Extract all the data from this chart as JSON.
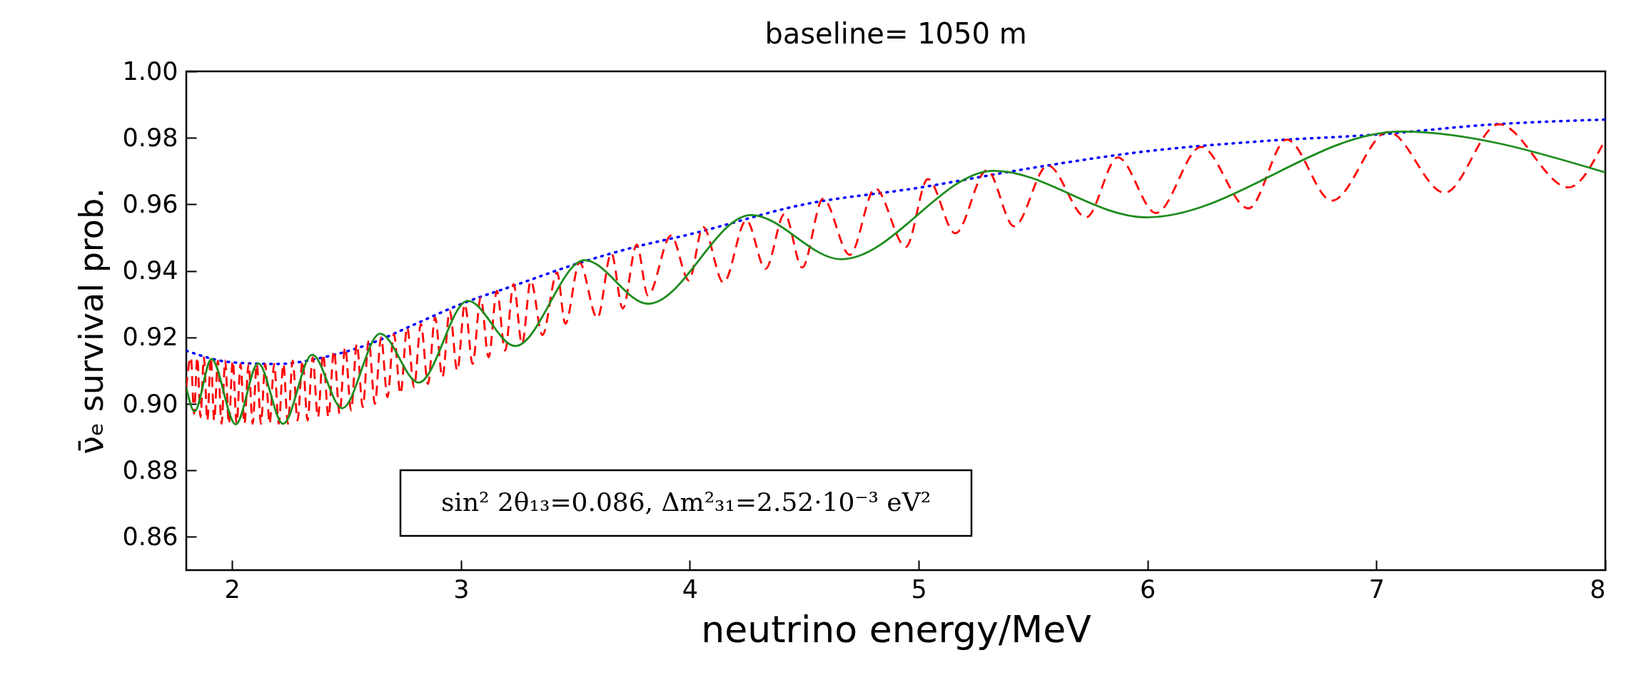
{
  "chart_data": {
    "type": "line",
    "title": "baseline= 1050 m",
    "xlabel": "neutrino energy/MeV",
    "ylabel": "ν̄ₑ survival prob.",
    "xlim": [
      1.8,
      8
    ],
    "xticks": [
      2,
      3,
      4,
      5,
      6,
      7,
      8
    ],
    "ylim": [
      0.85,
      1.0
    ],
    "yticks": [
      0.86,
      0.88,
      {
        "value": 0.9,
        "label": "0.90"
      },
      0.92,
      0.94,
      0.96,
      0.98,
      {
        "value": 1.0,
        "label": "1.00"
      }
    ],
    "annotations": [
      "sin² 2θ₁₃=0.086,  Δm²₃₁=2.52·10⁻³  eV²"
    ],
    "series": [
      {
        "color": "#0000ff",
        "line_style": "dotted",
        "x": [
          1.8,
          2.0,
          2.2,
          2.4,
          2.6,
          2.8,
          3.0,
          3.25,
          3.5,
          3.75,
          4.0,
          4.5,
          5.0,
          5.5,
          6.0,
          6.5,
          7.0,
          7.5,
          8.0
        ],
        "values": [
          0.916,
          0.9125,
          0.912,
          0.914,
          0.918,
          0.924,
          0.93,
          0.936,
          0.942,
          0.947,
          0.951,
          0.96,
          0.965,
          0.971,
          0.976,
          0.979,
          0.981,
          0.984,
          0.9855
        ]
      },
      {
        "color": "#ff0000",
        "line_style": "dashed",
        "x": [
          1.8,
          1.82,
          1.834,
          1.848,
          1.862,
          1.877,
          1.892,
          1.907,
          1.922,
          1.938,
          1.954,
          1.97,
          1.986,
          2.003,
          2.02,
          2.037,
          2.054,
          2.072,
          2.09,
          2.108,
          2.126,
          2.145,
          2.164,
          2.184,
          2.204,
          2.224,
          2.244,
          2.265,
          2.286,
          2.308,
          2.33,
          2.352,
          2.375,
          2.398,
          2.421,
          2.445,
          2.47,
          2.494,
          2.52,
          2.545,
          2.571,
          2.597,
          2.624,
          2.651,
          2.679,
          2.707,
          2.736,
          2.765,
          2.795,
          2.825,
          2.856,
          2.887,
          2.919,
          2.951,
          2.984,
          3.017,
          3.051,
          3.086,
          3.121,
          3.157,
          3.193,
          3.23,
          3.267,
          3.305,
          3.356,
          3.42,
          3.456,
          3.518,
          3.596,
          3.657,
          3.707,
          3.768,
          3.817,
          3.918,
          3.996,
          4.058,
          4.147,
          4.247,
          4.331,
          4.414,
          4.491,
          4.582,
          4.699,
          4.81,
          4.944,
          5.04,
          5.16,
          5.298,
          5.417,
          5.564,
          5.732,
          5.87,
          6.037,
          6.234,
          6.441,
          6.608,
          6.805,
          7.051,
          7.298,
          7.534,
          7.84,
          7.987
        ],
        "values": [
          0.905,
          0.914,
          0.897,
          0.914,
          0.896,
          0.914,
          0.895,
          0.914,
          0.895,
          0.913,
          0.894,
          0.913,
          0.894,
          0.913,
          0.894,
          0.912,
          0.894,
          0.912,
          0.894,
          0.912,
          0.894,
          0.912,
          0.894,
          0.912,
          0.894,
          0.912,
          0.894,
          0.913,
          0.895,
          0.913,
          0.895,
          0.914,
          0.896,
          0.915,
          0.896,
          0.916,
          0.897,
          0.917,
          0.898,
          0.918,
          0.899,
          0.919,
          0.9,
          0.92,
          0.902,
          0.921,
          0.903,
          0.923,
          0.905,
          0.924,
          0.906,
          0.926,
          0.908,
          0.928,
          0.91,
          0.93,
          0.912,
          0.932,
          0.914,
          0.934,
          0.916,
          0.936,
          0.918,
          0.937,
          0.9207,
          0.9395,
          0.9241,
          0.9425,
          0.9258,
          0.9453,
          0.9287,
          0.9479,
          0.9326,
          0.9506,
          0.9371,
          0.9532,
          0.9365,
          0.9552,
          0.9406,
          0.9571,
          0.941,
          0.9617,
          0.9448,
          0.9648,
          0.9472,
          0.9676,
          0.9513,
          0.9703,
          0.9534,
          0.9717,
          0.9561,
          0.9741,
          0.9574,
          0.9773,
          0.9588,
          0.9795,
          0.9611,
          0.9818,
          0.9635,
          0.9841,
          0.9651,
          0.9778
        ]
      },
      {
        "color": "#1e8c1e",
        "line_style": "solid",
        "x": [
          1.8,
          1.836,
          1.91,
          2.016,
          2.114,
          2.223,
          2.35,
          2.481,
          2.647,
          2.815,
          3.03,
          3.237,
          3.54,
          3.818,
          4.267,
          4.662,
          5.328,
          5.995,
          7.107,
          8.0
        ],
        "values": [
          0.905,
          0.8977,
          0.9135,
          0.8938,
          0.9122,
          0.894,
          0.9148,
          0.8987,
          0.9211,
          0.9064,
          0.931,
          0.9174,
          0.9432,
          0.9301,
          0.9568,
          0.9435,
          0.9701,
          0.9561,
          0.9819,
          0.9696
        ]
      }
    ]
  }
}
